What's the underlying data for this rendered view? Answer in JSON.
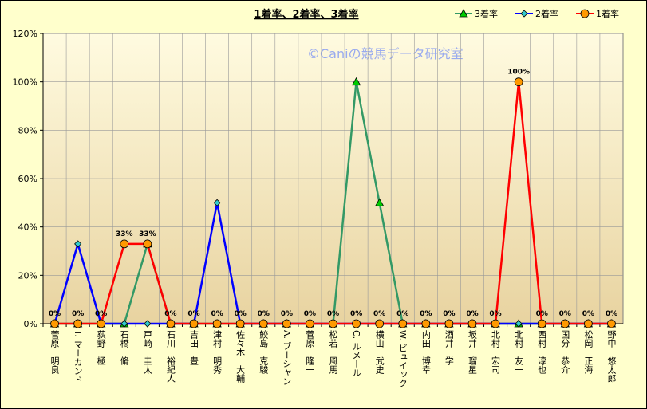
{
  "chart_data": {
    "type": "line",
    "title": "1着率、2着率、3着率",
    "watermark": "©Caniの競馬データ研究室",
    "categories": [
      "菅原　明良",
      "T. マーカンド",
      "荻野　極",
      "石橋　脩",
      "戸崎　圭太",
      "石川　裕紀人",
      "吉田　豊",
      "津村　明秀",
      "佐々木　大輔",
      "鮫島　克駿",
      "A. ブーシャン",
      "菅原　隆一",
      "松若　風馬",
      "C. ルメール",
      "横山　武史",
      "W. ビュイック",
      "内田　博幸",
      "酒井　学",
      "坂井　瑠星",
      "北村　宏司",
      "北村　友一",
      "西村　淳也",
      "国分　恭介",
      "松岡　正海",
      "野中　悠太郎"
    ],
    "series": [
      {
        "name": "3着率",
        "color": "#339966",
        "marker": "triangle",
        "marker_color": "#00cc00",
        "values": [
          0,
          0,
          0,
          0,
          33,
          0,
          0,
          0,
          0,
          0,
          0,
          0,
          0,
          100,
          50,
          0,
          0,
          0,
          0,
          0,
          0,
          0,
          0,
          0,
          0
        ]
      },
      {
        "name": "2着率",
        "color": "#0000ff",
        "marker": "diamond",
        "marker_color": "#33cccc",
        "values": [
          0,
          33,
          0,
          0,
          0,
          0,
          0,
          50,
          0,
          0,
          0,
          0,
          0,
          0,
          0,
          0,
          0,
          0,
          0,
          0,
          0,
          0,
          0,
          0,
          0
        ]
      },
      {
        "name": "1着率",
        "color": "#ff0000",
        "marker": "circle",
        "marker_color": "#ff9900",
        "values": [
          0,
          0,
          0,
          33,
          33,
          0,
          0,
          0,
          0,
          0,
          0,
          0,
          0,
          0,
          0,
          0,
          0,
          0,
          0,
          0,
          100,
          0,
          0,
          0,
          0
        ],
        "value_labels": [
          "0%",
          "0%",
          "0%",
          "33%",
          "33%",
          "0%",
          "0%",
          "0%",
          "0%",
          "0%",
          "0%",
          "0%",
          "0%",
          "0%",
          "0%",
          "0%",
          "0%",
          "0%",
          "0%",
          "0%",
          "100%",
          "0%",
          "0%",
          "0%",
          "0%"
        ]
      }
    ],
    "ylim": [
      0,
      120
    ],
    "yticks": [
      {
        "value": 0,
        "label": "0%"
      },
      {
        "value": 20,
        "label": "20%"
      },
      {
        "value": 40,
        "label": "40%"
      },
      {
        "value": 60,
        "label": "60%"
      },
      {
        "value": 80,
        "label": "80%"
      },
      {
        "value": 100,
        "label": "100%"
      },
      {
        "value": 120,
        "label": "120%"
      }
    ],
    "grid": true,
    "legend": "top-right"
  }
}
